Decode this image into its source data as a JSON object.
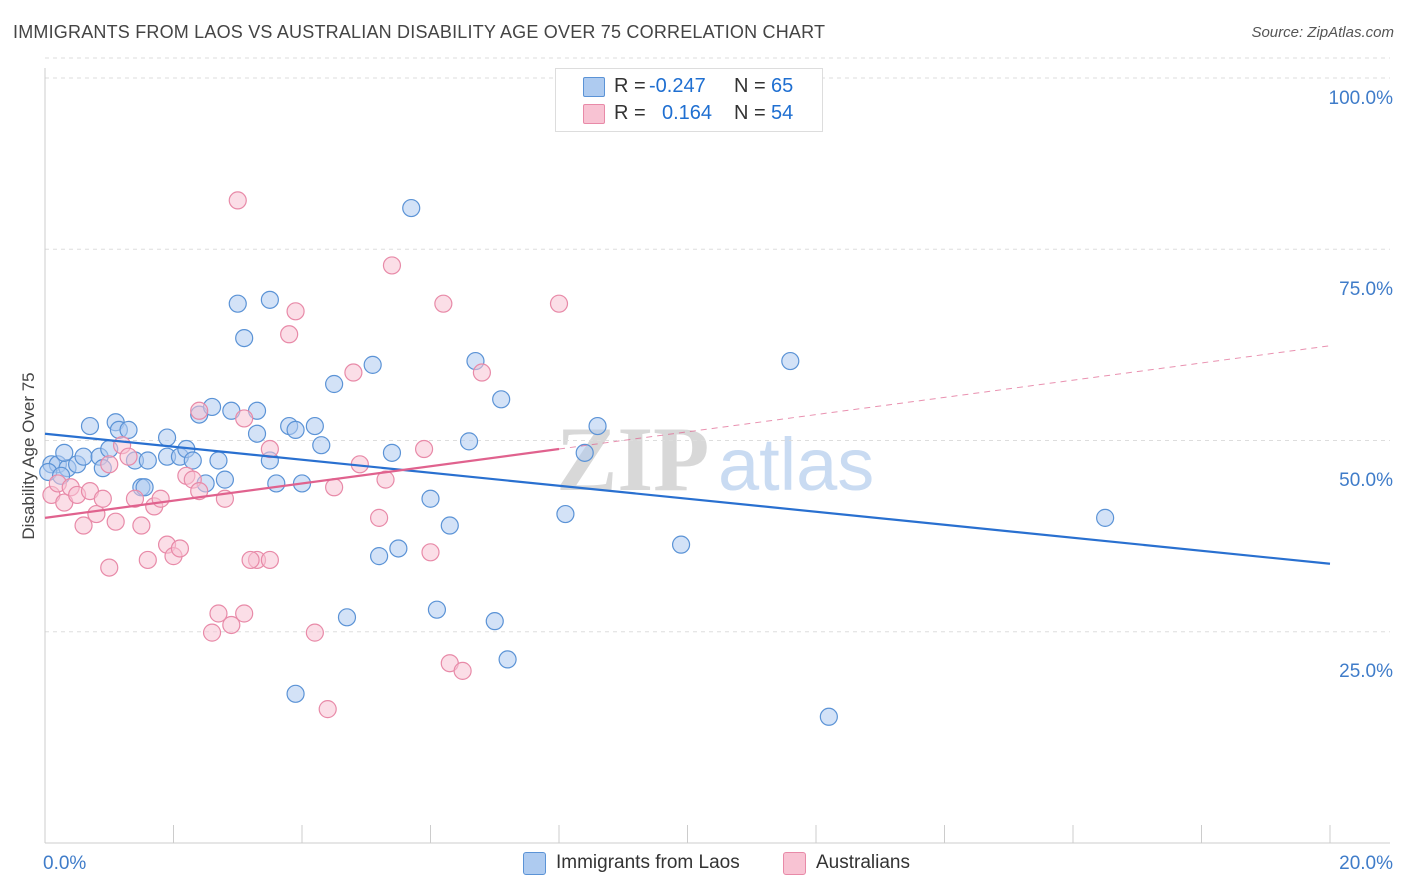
{
  "title": "IMMIGRANTS FROM LAOS VS AUSTRALIAN DISABILITY AGE OVER 75 CORRELATION CHART",
  "source": "Source: ZipAtlas.com",
  "watermark": {
    "zip": "ZIP",
    "atlas": "atlas"
  },
  "legend": {
    "rows": [
      {
        "r_label": "R =",
        "r_value": "-0.247",
        "n_label": "N =",
        "n_value": "65"
      },
      {
        "r_label": "R =",
        "r_value": "0.164",
        "n_label": "N =",
        "n_value": "54"
      }
    ]
  },
  "bottom_legend": [
    "Immigrants from Laos",
    "Australians"
  ],
  "colors": {
    "blue_fill": "#aecbf0",
    "blue_stroke": "#5b93d6",
    "blue_line": "#2970d0",
    "pink_fill": "#f8c3d3",
    "pink_stroke": "#e88aa8",
    "pink_line": "#e0628e",
    "axis_text": "#3f7cc9",
    "grid": "#dddddd"
  },
  "chart_data": {
    "type": "scatter",
    "title": "IMMIGRANTS FROM LAOS VS AUSTRALIAN DISABILITY AGE OVER 75 CORRELATION CHART",
    "xlabel": "",
    "ylabel": "Disability Age Over 75",
    "xlim": [
      0,
      20
    ],
    "ylim": [
      0,
      100
    ],
    "x_tick_labels": [
      "0.0%",
      "20.0%"
    ],
    "y_tick_labels": [
      "100.0%",
      "75.0%",
      "50.0%",
      "25.0%"
    ],
    "y_ticks": [
      100,
      75,
      50,
      25
    ],
    "series": [
      {
        "name": "Immigrants from Laos",
        "r": -0.247,
        "n": 65,
        "trend": {
          "x": [
            0,
            20
          ],
          "y": [
            53.5,
            36.5
          ]
        },
        "points": [
          [
            0.1,
            49.5
          ],
          [
            0.2,
            49.5
          ],
          [
            0.35,
            49.0
          ],
          [
            0.3,
            51.0
          ],
          [
            0.5,
            49.5
          ],
          [
            0.6,
            50.5
          ],
          [
            0.7,
            54.5
          ],
          [
            0.85,
            50.5
          ],
          [
            0.9,
            49.0
          ],
          [
            1.0,
            51.5
          ],
          [
            1.1,
            55.0
          ],
          [
            1.15,
            54.0
          ],
          [
            1.3,
            54.0
          ],
          [
            1.4,
            50.0
          ],
          [
            1.5,
            46.5
          ],
          [
            1.55,
            46.5
          ],
          [
            1.9,
            53.0
          ],
          [
            1.9,
            50.5
          ],
          [
            2.1,
            50.5
          ],
          [
            2.2,
            51.5
          ],
          [
            2.4,
            56.0
          ],
          [
            2.5,
            47.0
          ],
          [
            2.6,
            57.0
          ],
          [
            2.7,
            50.0
          ],
          [
            2.8,
            47.5
          ],
          [
            2.9,
            56.5
          ],
          [
            3.0,
            70.5
          ],
          [
            3.1,
            66.0
          ],
          [
            3.3,
            56.5
          ],
          [
            3.3,
            53.5
          ],
          [
            3.5,
            71.0
          ],
          [
            3.5,
            50.0
          ],
          [
            3.6,
            47.0
          ],
          [
            3.8,
            54.5
          ],
          [
            3.9,
            54.0
          ],
          [
            4.0,
            47.0
          ],
          [
            4.2,
            54.5
          ],
          [
            4.3,
            52.0
          ],
          [
            4.5,
            60.0
          ],
          [
            4.7,
            29.5
          ],
          [
            5.1,
            62.5
          ],
          [
            5.2,
            37.5
          ],
          [
            5.4,
            51.0
          ],
          [
            5.5,
            38.5
          ],
          [
            5.7,
            83.0
          ],
          [
            6.0,
            45.0
          ],
          [
            6.1,
            30.5
          ],
          [
            6.3,
            41.5
          ],
          [
            6.6,
            52.5
          ],
          [
            6.7,
            63.0
          ],
          [
            7.0,
            29.0
          ],
          [
            7.1,
            58.0
          ],
          [
            7.2,
            24.0
          ],
          [
            8.1,
            43.0
          ],
          [
            8.4,
            51.0
          ],
          [
            8.6,
            54.5
          ],
          [
            9.9,
            39.0
          ],
          [
            11.6,
            63.0
          ],
          [
            12.2,
            16.5
          ],
          [
            16.5,
            42.5
          ],
          [
            3.9,
            19.5
          ],
          [
            0.05,
            48.5
          ],
          [
            0.25,
            48.0
          ],
          [
            1.6,
            50.0
          ],
          [
            2.3,
            50.0
          ]
        ]
      },
      {
        "name": "Australians",
        "r": 0.164,
        "n": 54,
        "trend": {
          "x": [
            0,
            8.0
          ],
          "y": [
            42.5,
            51.5
          ],
          "extended": {
            "x": [
              8.0,
              20
            ],
            "y": [
              51.5,
              65.0
            ]
          }
        },
        "points": [
          [
            0.1,
            45.5
          ],
          [
            0.2,
            47.0
          ],
          [
            0.3,
            44.5
          ],
          [
            0.4,
            46.5
          ],
          [
            0.5,
            45.5
          ],
          [
            0.6,
            41.5
          ],
          [
            0.7,
            46.0
          ],
          [
            0.8,
            43.0
          ],
          [
            1.0,
            49.5
          ],
          [
            1.0,
            36.0
          ],
          [
            1.1,
            42.0
          ],
          [
            1.2,
            52.0
          ],
          [
            1.3,
            50.5
          ],
          [
            1.4,
            45.0
          ],
          [
            1.6,
            37.0
          ],
          [
            1.7,
            44.0
          ],
          [
            1.8,
            45.0
          ],
          [
            1.9,
            39.0
          ],
          [
            2.0,
            37.5
          ],
          [
            2.1,
            38.5
          ],
          [
            2.2,
            48.0
          ],
          [
            2.3,
            47.5
          ],
          [
            2.4,
            46.0
          ],
          [
            2.4,
            56.5
          ],
          [
            2.6,
            27.5
          ],
          [
            2.7,
            30.0
          ],
          [
            2.8,
            45.0
          ],
          [
            2.9,
            28.5
          ],
          [
            3.0,
            84.0
          ],
          [
            3.1,
            30.0
          ],
          [
            3.1,
            55.5
          ],
          [
            3.3,
            37.0
          ],
          [
            3.5,
            37.0
          ],
          [
            3.5,
            51.5
          ],
          [
            3.8,
            66.5
          ],
          [
            3.9,
            69.5
          ],
          [
            4.2,
            27.5
          ],
          [
            4.4,
            17.5
          ],
          [
            4.5,
            46.5
          ],
          [
            4.8,
            61.5
          ],
          [
            4.9,
            49.5
          ],
          [
            5.2,
            42.5
          ],
          [
            5.4,
            75.5
          ],
          [
            5.9,
            51.5
          ],
          [
            6.0,
            38.0
          ],
          [
            6.2,
            70.5
          ],
          [
            6.3,
            23.5
          ],
          [
            6.5,
            22.5
          ],
          [
            6.8,
            61.5
          ],
          [
            8.0,
            70.5
          ],
          [
            1.5,
            41.5
          ],
          [
            0.9,
            45.0
          ],
          [
            3.2,
            37.0
          ],
          [
            5.3,
            47.5
          ]
        ]
      }
    ]
  }
}
